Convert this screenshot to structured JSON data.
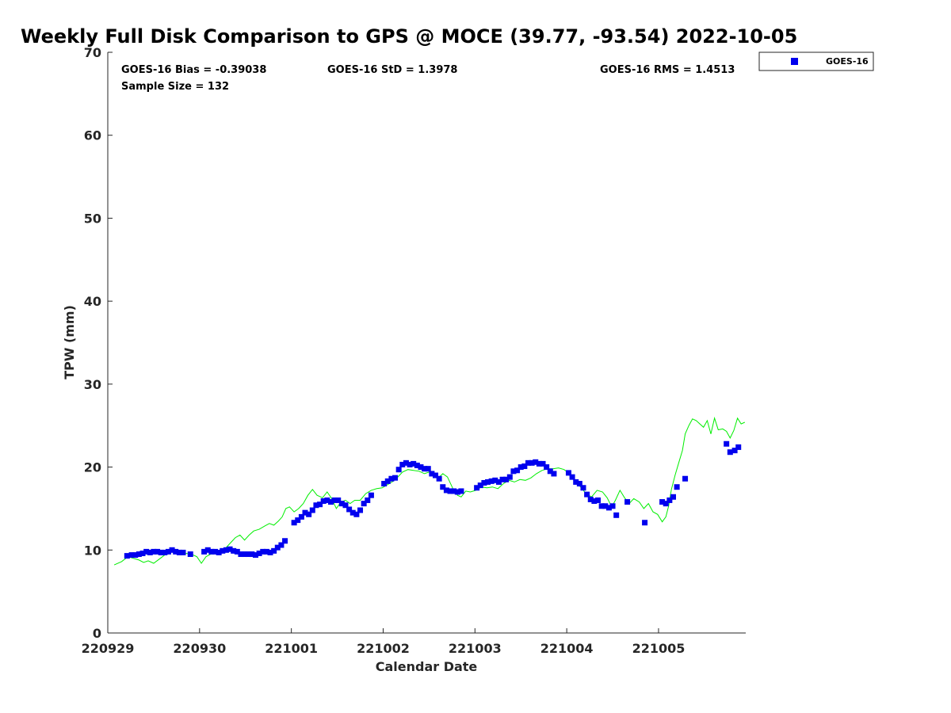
{
  "chart_data": {
    "type": "scatter",
    "title": "Weekly Full Disk Comparison to GPS @ MOCE (39.77, -93.54) 2022-10-05",
    "xlabel": "Calendar Date",
    "ylabel": "TPW (mm)",
    "xlim": [
      0,
      6.95
    ],
    "ylim": [
      0,
      70
    ],
    "x_ticks": [
      0,
      1,
      2,
      3,
      4,
      5,
      6
    ],
    "x_tick_labels": [
      "220929",
      "220930",
      "221001",
      "221002",
      "221003",
      "221004",
      "221005"
    ],
    "y_ticks": [
      0,
      10,
      20,
      30,
      40,
      50,
      60,
      70
    ],
    "grid": false,
    "legend_position": "outside-top-right",
    "stats": {
      "bias": "GOES-16 Bias = -0.39038",
      "std": "GOES-16 StD = 1.3978",
      "rms": "GOES-16 RMS = 1.4513",
      "sample": "Sample Size = 132"
    },
    "series": [
      {
        "name": "GOES-16",
        "type": "scatter",
        "color": "#0000ee",
        "marker": "square",
        "points": [
          [
            0.21,
            9.3
          ],
          [
            0.26,
            9.4
          ],
          [
            0.3,
            9.4
          ],
          [
            0.34,
            9.5
          ],
          [
            0.38,
            9.6
          ],
          [
            0.42,
            9.8
          ],
          [
            0.46,
            9.7
          ],
          [
            0.5,
            9.8
          ],
          [
            0.54,
            9.8
          ],
          [
            0.58,
            9.7
          ],
          [
            0.62,
            9.7
          ],
          [
            0.66,
            9.8
          ],
          [
            0.7,
            10.0
          ],
          [
            0.74,
            9.8
          ],
          [
            0.78,
            9.7
          ],
          [
            0.82,
            9.7
          ],
          [
            0.9,
            9.5
          ],
          [
            1.05,
            9.8
          ],
          [
            1.09,
            10.0
          ],
          [
            1.13,
            9.8
          ],
          [
            1.17,
            9.8
          ],
          [
            1.21,
            9.7
          ],
          [
            1.25,
            9.9
          ],
          [
            1.29,
            10.0
          ],
          [
            1.33,
            10.1
          ],
          [
            1.37,
            9.9
          ],
          [
            1.41,
            9.8
          ],
          [
            1.45,
            9.5
          ],
          [
            1.49,
            9.5
          ],
          [
            1.53,
            9.5
          ],
          [
            1.57,
            9.5
          ],
          [
            1.61,
            9.4
          ],
          [
            1.65,
            9.6
          ],
          [
            1.69,
            9.8
          ],
          [
            1.73,
            9.8
          ],
          [
            1.77,
            9.7
          ],
          [
            1.81,
            9.9
          ],
          [
            1.85,
            10.3
          ],
          [
            1.89,
            10.6
          ],
          [
            1.93,
            11.1
          ],
          [
            2.03,
            13.3
          ],
          [
            2.07,
            13.6
          ],
          [
            2.11,
            14.0
          ],
          [
            2.15,
            14.5
          ],
          [
            2.19,
            14.3
          ],
          [
            2.23,
            14.8
          ],
          [
            2.27,
            15.4
          ],
          [
            2.31,
            15.5
          ],
          [
            2.35,
            15.9
          ],
          [
            2.39,
            16.0
          ],
          [
            2.43,
            15.8
          ],
          [
            2.47,
            16.0
          ],
          [
            2.51,
            16.0
          ],
          [
            2.55,
            15.6
          ],
          [
            2.59,
            15.4
          ],
          [
            2.63,
            14.9
          ],
          [
            2.67,
            14.5
          ],
          [
            2.71,
            14.3
          ],
          [
            2.75,
            14.8
          ],
          [
            2.79,
            15.6
          ],
          [
            2.83,
            16.0
          ],
          [
            2.87,
            16.6
          ],
          [
            3.01,
            18.0
          ],
          [
            3.05,
            18.3
          ],
          [
            3.09,
            18.6
          ],
          [
            3.13,
            18.7
          ],
          [
            3.17,
            19.7
          ],
          [
            3.21,
            20.3
          ],
          [
            3.25,
            20.5
          ],
          [
            3.29,
            20.3
          ],
          [
            3.33,
            20.4
          ],
          [
            3.37,
            20.2
          ],
          [
            3.41,
            20.0
          ],
          [
            3.45,
            19.8
          ],
          [
            3.49,
            19.8
          ],
          [
            3.53,
            19.2
          ],
          [
            3.57,
            19.0
          ],
          [
            3.61,
            18.6
          ],
          [
            3.65,
            17.6
          ],
          [
            3.69,
            17.2
          ],
          [
            3.73,
            17.1
          ],
          [
            3.77,
            17.1
          ],
          [
            3.81,
            17.0
          ],
          [
            3.85,
            17.1
          ],
          [
            4.02,
            17.5
          ],
          [
            4.06,
            17.8
          ],
          [
            4.1,
            18.1
          ],
          [
            4.14,
            18.2
          ],
          [
            4.18,
            18.3
          ],
          [
            4.22,
            18.4
          ],
          [
            4.26,
            18.2
          ],
          [
            4.3,
            18.5
          ],
          [
            4.34,
            18.5
          ],
          [
            4.38,
            18.8
          ],
          [
            4.42,
            19.5
          ],
          [
            4.46,
            19.6
          ],
          [
            4.5,
            20.0
          ],
          [
            4.54,
            20.1
          ],
          [
            4.58,
            20.5
          ],
          [
            4.62,
            20.5
          ],
          [
            4.66,
            20.6
          ],
          [
            4.7,
            20.4
          ],
          [
            4.74,
            20.4
          ],
          [
            4.78,
            20.0
          ],
          [
            4.82,
            19.5
          ],
          [
            4.86,
            19.2
          ],
          [
            5.02,
            19.3
          ],
          [
            5.06,
            18.8
          ],
          [
            5.1,
            18.2
          ],
          [
            5.14,
            18.0
          ],
          [
            5.18,
            17.5
          ],
          [
            5.22,
            16.7
          ],
          [
            5.26,
            16.1
          ],
          [
            5.3,
            15.9
          ],
          [
            5.34,
            16.0
          ],
          [
            5.38,
            15.3
          ],
          [
            5.42,
            15.3
          ],
          [
            5.46,
            15.1
          ],
          [
            5.5,
            15.3
          ],
          [
            5.54,
            14.2
          ],
          [
            5.66,
            15.8
          ],
          [
            5.85,
            13.3
          ],
          [
            6.04,
            15.8
          ],
          [
            6.08,
            15.6
          ],
          [
            6.12,
            16.0
          ],
          [
            6.16,
            16.4
          ],
          [
            6.2,
            17.6
          ],
          [
            6.29,
            18.6
          ],
          [
            6.74,
            22.8
          ],
          [
            6.78,
            21.8
          ],
          [
            6.83,
            22.0
          ],
          [
            6.87,
            22.4
          ]
        ]
      },
      {
        "name": "",
        "type": "line",
        "color": "#00ee00",
        "points": [
          [
            0.07,
            8.2
          ],
          [
            0.15,
            8.6
          ],
          [
            0.22,
            9.2
          ],
          [
            0.28,
            9.0
          ],
          [
            0.34,
            8.8
          ],
          [
            0.39,
            8.5
          ],
          [
            0.44,
            8.7
          ],
          [
            0.5,
            8.4
          ],
          [
            0.56,
            8.9
          ],
          [
            0.62,
            9.4
          ],
          [
            0.68,
            9.8
          ],
          [
            0.73,
            10.0
          ],
          [
            0.79,
            9.8
          ],
          [
            0.85,
            9.6
          ],
          [
            0.91,
            9.5
          ],
          [
            0.97,
            9.2
          ],
          [
            1.02,
            8.4
          ],
          [
            1.07,
            9.2
          ],
          [
            1.12,
            9.5
          ],
          [
            1.18,
            9.6
          ],
          [
            1.23,
            9.9
          ],
          [
            1.29,
            10.3
          ],
          [
            1.34,
            10.9
          ],
          [
            1.39,
            11.5
          ],
          [
            1.44,
            11.8
          ],
          [
            1.49,
            11.2
          ],
          [
            1.54,
            11.8
          ],
          [
            1.59,
            12.3
          ],
          [
            1.65,
            12.5
          ],
          [
            1.71,
            12.9
          ],
          [
            1.76,
            13.2
          ],
          [
            1.81,
            13.0
          ],
          [
            1.86,
            13.5
          ],
          [
            1.9,
            14.0
          ],
          [
            1.94,
            15.0
          ],
          [
            1.98,
            15.2
          ],
          [
            2.03,
            14.6
          ],
          [
            2.08,
            15.0
          ],
          [
            2.13,
            15.6
          ],
          [
            2.18,
            16.6
          ],
          [
            2.23,
            17.3
          ],
          [
            2.28,
            16.6
          ],
          [
            2.34,
            16.3
          ],
          [
            2.39,
            17.0
          ],
          [
            2.44,
            16.2
          ],
          [
            2.49,
            15.0
          ],
          [
            2.54,
            15.8
          ],
          [
            2.59,
            16.0
          ],
          [
            2.64,
            15.6
          ],
          [
            2.69,
            16.0
          ],
          [
            2.75,
            16.0
          ],
          [
            2.81,
            16.8
          ],
          [
            2.87,
            17.2
          ],
          [
            2.93,
            17.4
          ],
          [
            2.99,
            17.5
          ],
          [
            3.05,
            17.9
          ],
          [
            3.11,
            18.3
          ],
          [
            3.16,
            18.8
          ],
          [
            3.21,
            19.4
          ],
          [
            3.27,
            19.7
          ],
          [
            3.33,
            19.6
          ],
          [
            3.39,
            19.5
          ],
          [
            3.45,
            19.2
          ],
          [
            3.5,
            19.4
          ],
          [
            3.55,
            19.0
          ],
          [
            3.6,
            18.7
          ],
          [
            3.65,
            19.2
          ],
          [
            3.7,
            18.8
          ],
          [
            3.76,
            17.4
          ],
          [
            3.81,
            16.6
          ],
          [
            3.85,
            16.4
          ],
          [
            3.9,
            17.1
          ],
          [
            3.95,
            17.0
          ],
          [
            4.01,
            17.2
          ],
          [
            4.07,
            17.6
          ],
          [
            4.13,
            17.5
          ],
          [
            4.19,
            17.6
          ],
          [
            4.25,
            17.4
          ],
          [
            4.31,
            18.0
          ],
          [
            4.37,
            18.4
          ],
          [
            4.43,
            18.2
          ],
          [
            4.49,
            18.5
          ],
          [
            4.55,
            18.4
          ],
          [
            4.61,
            18.7
          ],
          [
            4.67,
            19.2
          ],
          [
            4.73,
            19.6
          ],
          [
            4.79,
            19.8
          ],
          [
            4.85,
            19.8
          ],
          [
            4.91,
            19.9
          ],
          [
            4.97,
            19.7
          ],
          [
            5.03,
            19.2
          ],
          [
            5.09,
            18.4
          ],
          [
            5.15,
            17.6
          ],
          [
            5.21,
            16.8
          ],
          [
            5.27,
            16.4
          ],
          [
            5.33,
            17.2
          ],
          [
            5.39,
            17.0
          ],
          [
            5.44,
            16.3
          ],
          [
            5.49,
            15.2
          ],
          [
            5.53,
            16.0
          ],
          [
            5.58,
            17.2
          ],
          [
            5.63,
            16.3
          ],
          [
            5.68,
            15.6
          ],
          [
            5.73,
            16.2
          ],
          [
            5.79,
            15.8
          ],
          [
            5.84,
            15.0
          ],
          [
            5.89,
            15.6
          ],
          [
            5.94,
            14.6
          ],
          [
            5.99,
            14.3
          ],
          [
            6.04,
            13.4
          ],
          [
            6.08,
            14.0
          ],
          [
            6.11,
            15.3
          ],
          [
            6.14,
            17.3
          ],
          [
            6.18,
            19.0
          ],
          [
            6.22,
            20.5
          ],
          [
            6.26,
            22.0
          ],
          [
            6.29,
            24.0
          ],
          [
            6.33,
            25.0
          ],
          [
            6.37,
            25.8
          ],
          [
            6.41,
            25.6
          ],
          [
            6.45,
            25.2
          ],
          [
            6.49,
            24.8
          ],
          [
            6.53,
            25.6
          ],
          [
            6.57,
            24.0
          ],
          [
            6.61,
            25.9
          ],
          [
            6.65,
            24.5
          ],
          [
            6.7,
            24.6
          ],
          [
            6.74,
            24.3
          ],
          [
            6.78,
            23.5
          ],
          [
            6.82,
            24.4
          ],
          [
            6.86,
            25.9
          ],
          [
            6.9,
            25.2
          ],
          [
            6.94,
            25.4
          ]
        ]
      }
    ]
  }
}
